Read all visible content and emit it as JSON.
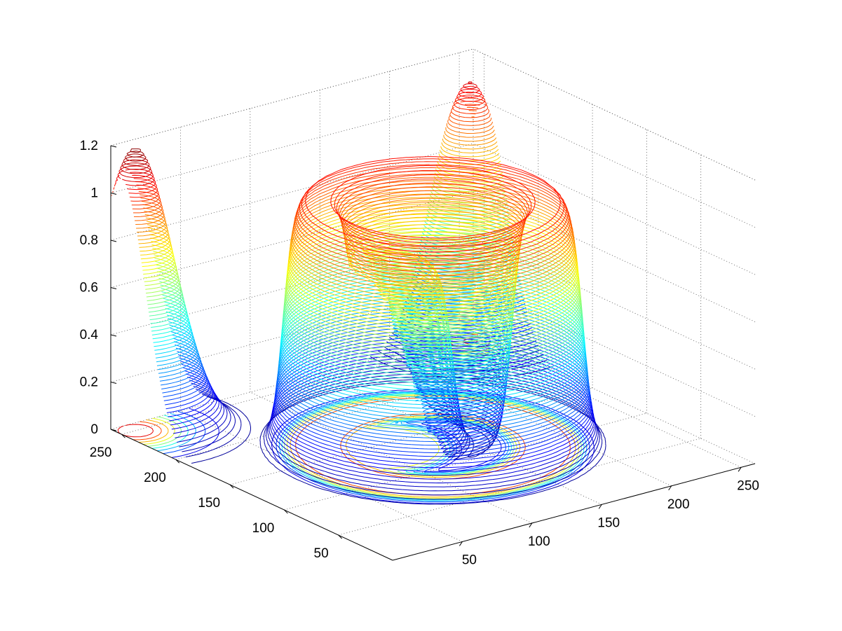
{
  "chart_data": {
    "type": "contour3",
    "title": "",
    "xlabel": "",
    "ylabel": "",
    "zlabel": "",
    "xlim": [
      0,
      260
    ],
    "ylim": [
      0,
      260
    ],
    "zlim": [
      0,
      1.2
    ],
    "x_ticks": [
      "50",
      "100",
      "150",
      "200",
      "250"
    ],
    "y_ticks": [
      "50",
      "100",
      "150",
      "200",
      "250"
    ],
    "z_ticks": [
      "0",
      "0.2",
      "0.4",
      "0.6",
      "0.8",
      "1",
      "1.2"
    ],
    "grid": true,
    "colormap": "jet",
    "colors": [
      "#00008f",
      "#0000ff",
      "#0080ff",
      "#00ffff",
      "#80ff80",
      "#ffff00",
      "#ff8000",
      "#ff0000",
      "#800000"
    ],
    "contour_levels": 80,
    "features": [
      {
        "shape": "ring",
        "x": 130,
        "y": 130,
        "inner_radius": 45,
        "outer_radius": 85,
        "height": 1.05
      },
      {
        "shape": "column",
        "x": 105,
        "y": 145,
        "radius": 40,
        "height": 0.78
      },
      {
        "shape": "wall",
        "x": 10,
        "y": 250,
        "height": 1.2
      },
      {
        "shape": "wall",
        "x": 250,
        "y": 250,
        "height": 1.1
      }
    ]
  }
}
